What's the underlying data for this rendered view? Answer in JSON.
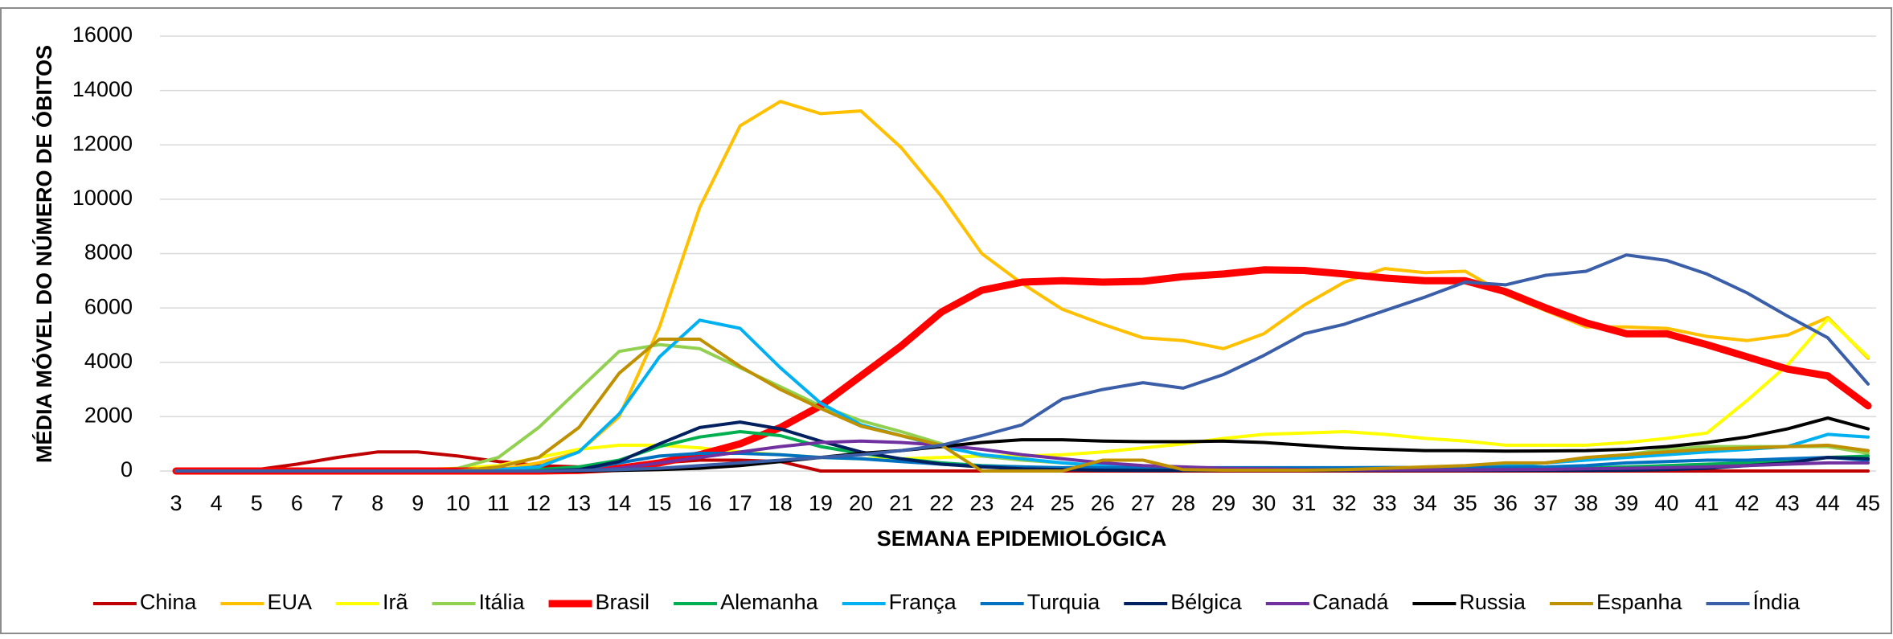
{
  "chart_data": {
    "type": "line",
    "y_label": "MÉDIA MÓVEL DO NÚMERO DE ÓBITOS",
    "x_label": "SEMANA EPIDEMIOLÓGICA",
    "categories": [
      3,
      4,
      5,
      6,
      7,
      8,
      9,
      10,
      11,
      12,
      13,
      14,
      15,
      16,
      17,
      18,
      19,
      20,
      21,
      22,
      23,
      24,
      25,
      26,
      27,
      28,
      29,
      30,
      31,
      32,
      33,
      34,
      35,
      36,
      37,
      38,
      39,
      40,
      41,
      42,
      43,
      44,
      45
    ],
    "ylim": [
      0,
      16000
    ],
    "yticks": [
      0,
      2000,
      4000,
      6000,
      8000,
      10000,
      12000,
      14000,
      16000
    ],
    "grid": true,
    "legend": "bottom",
    "series": [
      {
        "name": "China",
        "color": "#c00000",
        "line_width": 4,
        "values": [
          0,
          10,
          50,
          250,
          500,
          700,
          700,
          550,
          350,
          200,
          150,
          100,
          300,
          400,
          400,
          350,
          0,
          0,
          0,
          0,
          0,
          0,
          0,
          0,
          0,
          0,
          0,
          0,
          0,
          0,
          0,
          0,
          0,
          0,
          0,
          0,
          0,
          0,
          0,
          0,
          0,
          0,
          0
        ]
      },
      {
        "name": "EUA",
        "color": "#ffc000",
        "line_width": 4,
        "values": [
          0,
          0,
          0,
          0,
          0,
          0,
          0,
          0,
          50,
          300,
          700,
          2000,
          5300,
          9700,
          12700,
          13600,
          13150,
          13250,
          11900,
          10100,
          8000,
          6900,
          5950,
          5400,
          4900,
          4800,
          4500,
          5050,
          6100,
          6950,
          7450,
          7300,
          7350,
          6500,
          5900,
          5300,
          5300,
          5250,
          4950,
          4800,
          5000,
          5650,
          4150
        ]
      },
      {
        "name": "Irã",
        "color": "#ffff00",
        "line_width": 4,
        "values": [
          0,
          0,
          0,
          0,
          0,
          0,
          50,
          100,
          200,
          500,
          800,
          950,
          950,
          850,
          700,
          600,
          500,
          450,
          450,
          500,
          550,
          550,
          600,
          700,
          850,
          1000,
          1200,
          1350,
          1400,
          1450,
          1350,
          1200,
          1100,
          950,
          950,
          950,
          1050,
          1200,
          1400,
          2600,
          3900,
          5600,
          4200
        ]
      },
      {
        "name": "Itália",
        "color": "#92d050",
        "line_width": 4,
        "values": [
          0,
          0,
          0,
          0,
          0,
          0,
          0,
          100,
          500,
          1600,
          3000,
          4400,
          4650,
          4500,
          3800,
          3100,
          2400,
          1850,
          1450,
          1000,
          550,
          400,
          300,
          150,
          100,
          80,
          60,
          60,
          60,
          80,
          100,
          120,
          150,
          200,
          300,
          450,
          600,
          800,
          900,
          900,
          900,
          900,
          650
        ]
      },
      {
        "name": "Brasil",
        "color": "#ff0000",
        "line_width": 9,
        "values": [
          0,
          0,
          0,
          0,
          0,
          0,
          0,
          0,
          0,
          0,
          20,
          100,
          300,
          600,
          1000,
          1600,
          2400,
          3500,
          4600,
          5850,
          6650,
          6950,
          7000,
          6950,
          6980,
          7150,
          7250,
          7400,
          7380,
          7250,
          7100,
          7000,
          7000,
          6600,
          6000,
          5450,
          5050,
          5050,
          4650,
          4200,
          3750,
          3500,
          2400
        ]
      },
      {
        "name": "Alemanha",
        "color": "#00b050",
        "line_width": 4,
        "values": [
          0,
          0,
          0,
          0,
          0,
          0,
          0,
          0,
          0,
          50,
          150,
          400,
          900,
          1250,
          1450,
          1300,
          900,
          650,
          450,
          300,
          200,
          150,
          100,
          50,
          30,
          30,
          30,
          30,
          30,
          30,
          30,
          30,
          30,
          30,
          50,
          100,
          150,
          200,
          250,
          300,
          350,
          500,
          550
        ]
      },
      {
        "name": "França",
        "color": "#00b0f0",
        "line_width": 4,
        "values": [
          0,
          0,
          0,
          0,
          0,
          0,
          0,
          0,
          50,
          150,
          700,
          2100,
          4200,
          5550,
          5250,
          3800,
          2500,
          1700,
          1300,
          900,
          600,
          450,
          300,
          200,
          150,
          100,
          80,
          80,
          80,
          80,
          90,
          100,
          150,
          200,
          300,
          400,
          500,
          600,
          700,
          800,
          900,
          1350,
          1250
        ]
      },
      {
        "name": "Turquia",
        "color": "#0070c0",
        "line_width": 4,
        "values": [
          0,
          0,
          0,
          0,
          0,
          0,
          0,
          0,
          0,
          0,
          50,
          300,
          550,
          650,
          650,
          600,
          500,
          450,
          350,
          250,
          180,
          150,
          120,
          120,
          130,
          120,
          120,
          120,
          120,
          120,
          130,
          130,
          130,
          140,
          150,
          200,
          300,
          350,
          400,
          400,
          450,
          500,
          400
        ]
      },
      {
        "name": "Bélgica",
        "color": "#002060",
        "line_width": 4,
        "values": [
          0,
          0,
          0,
          0,
          0,
          0,
          0,
          0,
          0,
          0,
          50,
          350,
          1000,
          1600,
          1800,
          1550,
          1100,
          700,
          450,
          250,
          150,
          80,
          50,
          30,
          20,
          20,
          20,
          20,
          20,
          20,
          20,
          20,
          20,
          20,
          20,
          20,
          30,
          50,
          100,
          200,
          300,
          500,
          450
        ]
      },
      {
        "name": "Canadá",
        "color": "#7030a0",
        "line_width": 4,
        "values": [
          0,
          0,
          0,
          0,
          0,
          0,
          0,
          0,
          0,
          0,
          0,
          100,
          300,
          500,
          700,
          900,
          1050,
          1100,
          1050,
          950,
          800,
          600,
          450,
          300,
          200,
          150,
          100,
          80,
          50,
          40,
          40,
          40,
          40,
          50,
          60,
          80,
          100,
          120,
          150,
          200,
          250,
          300,
          300
        ]
      },
      {
        "name": "Russia",
        "color": "#000000",
        "line_width": 4,
        "values": [
          0,
          0,
          0,
          0,
          0,
          0,
          0,
          0,
          0,
          0,
          0,
          20,
          50,
          100,
          200,
          350,
          500,
          650,
          750,
          900,
          1050,
          1150,
          1150,
          1100,
          1080,
          1080,
          1100,
          1050,
          950,
          850,
          800,
          750,
          750,
          730,
          740,
          750,
          800,
          900,
          1050,
          1250,
          1550,
          1950,
          1550
        ]
      },
      {
        "name": "Espanha",
        "color": "#bf9000",
        "line_width": 4,
        "values": [
          0,
          0,
          0,
          0,
          0,
          0,
          0,
          0,
          150,
          500,
          1600,
          3600,
          4850,
          4850,
          3850,
          3000,
          2300,
          1650,
          1300,
          950,
          0,
          0,
          0,
          400,
          400,
          50,
          30,
          30,
          30,
          50,
          100,
          150,
          200,
          300,
          300,
          500,
          600,
          700,
          800,
          850,
          900,
          950,
          750
        ]
      },
      {
        "name": "Índia",
        "color": "#3b5ea8",
        "line_width": 4,
        "values": [
          0,
          0,
          0,
          0,
          0,
          0,
          0,
          0,
          0,
          0,
          20,
          50,
          100,
          200,
          300,
          400,
          500,
          600,
          750,
          950,
          1300,
          1700,
          2650,
          3000,
          3250,
          3050,
          3550,
          4250,
          5050,
          5400,
          5900,
          6400,
          6950,
          6850,
          7200,
          7350,
          7950,
          7750,
          7250,
          6550,
          5700,
          4900,
          3200
        ]
      }
    ]
  }
}
